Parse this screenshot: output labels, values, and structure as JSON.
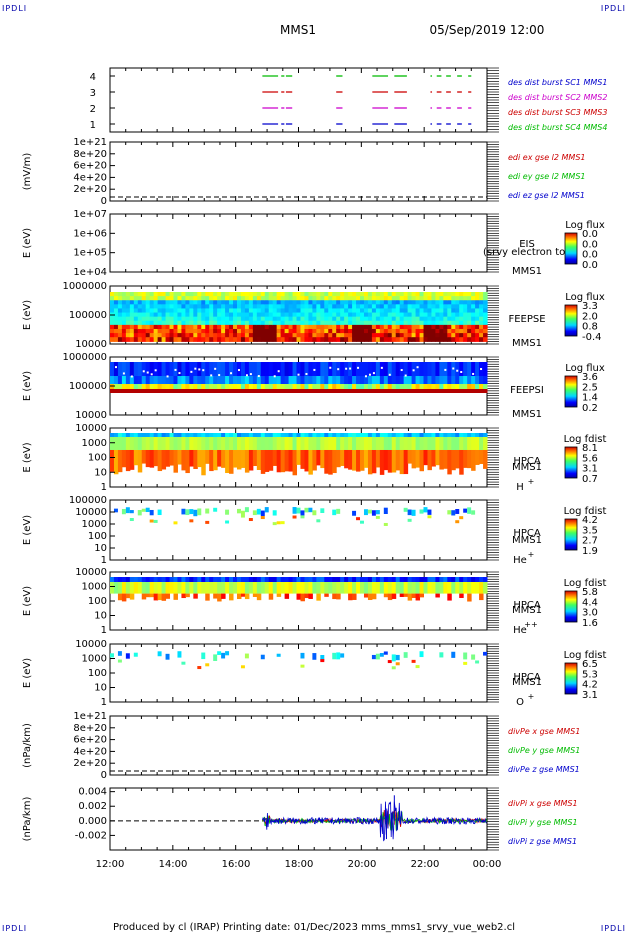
{
  "header": {
    "spacecraft": "MMS1",
    "datetime": "05/Sep/2019 12:00"
  },
  "corners": {
    "top_left": "IPDLI",
    "top_right": "IPDLI",
    "bottom_left": "IPDLI",
    "bottom_right": "IPDLI"
  },
  "footer": "Produced by cl (IRAP)    Printing date: 01/Dec/2023    mms_mms1_srvy_vue_web2.cl",
  "time_axis": {
    "ticks": [
      "12:00",
      "14:00",
      "16:00",
      "18:00",
      "20:00",
      "22:00",
      "00:00"
    ]
  },
  "colors": {
    "mms1": "#0000cc",
    "mms2": "#cc00cc",
    "mms3": "#cc0000",
    "mms4": "#00bb00",
    "text_blue": "#0000aa"
  },
  "chart_data": [
    {
      "type": "line",
      "title": "",
      "ylabel": "",
      "ylim": [
        0.5,
        4.5
      ],
      "yticks": [
        "4",
        "3",
        "2",
        "1"
      ],
      "series": [
        {
          "name": "des dist burst SC1 MMS1",
          "level": 1,
          "segments": [
            [
              16.85,
              17.35
            ],
            [
              17.45,
              17.55
            ],
            [
              17.6,
              17.8
            ],
            [
              19.2,
              19.4
            ],
            [
              20.35,
              20.85
            ],
            [
              21.05,
              21.45
            ],
            [
              22.2,
              22.25
            ],
            [
              22.4,
              22.55
            ],
            [
              22.7,
              22.85
            ],
            [
              23.05,
              23.2
            ],
            [
              23.4,
              23.5
            ]
          ]
        },
        {
          "name": "des dist burst SC2 MMS2",
          "level": 2,
          "segments": [
            [
              16.85,
              17.35
            ],
            [
              17.45,
              17.55
            ],
            [
              17.6,
              17.8
            ],
            [
              19.2,
              19.4
            ],
            [
              20.35,
              20.85
            ],
            [
              21.05,
              21.45
            ],
            [
              22.2,
              22.25
            ],
            [
              22.4,
              22.55
            ],
            [
              22.7,
              22.85
            ],
            [
              23.05,
              23.2
            ],
            [
              23.4,
              23.5
            ]
          ]
        },
        {
          "name": "des dist burst SC3 MMS3",
          "level": 3,
          "segments": [
            [
              16.85,
              17.35
            ],
            [
              17.45,
              17.55
            ],
            [
              17.6,
              17.8
            ],
            [
              19.2,
              19.4
            ],
            [
              20.35,
              20.85
            ],
            [
              21.05,
              21.45
            ],
            [
              22.2,
              22.25
            ],
            [
              22.4,
              22.55
            ],
            [
              22.7,
              22.85
            ],
            [
              23.05,
              23.2
            ],
            [
              23.4,
              23.5
            ]
          ]
        },
        {
          "name": "des dist burst SC4 MMS4",
          "level": 4,
          "segments": [
            [
              16.85,
              17.35
            ],
            [
              17.45,
              17.55
            ],
            [
              17.6,
              17.8
            ],
            [
              19.2,
              19.4
            ],
            [
              20.35,
              20.85
            ],
            [
              21.05,
              21.45
            ],
            [
              22.2,
              22.25
            ],
            [
              22.4,
              22.55
            ],
            [
              22.7,
              22.85
            ],
            [
              23.05,
              23.2
            ],
            [
              23.4,
              23.5
            ]
          ]
        }
      ]
    },
    {
      "type": "line",
      "title": "",
      "ylabel": "(mV/m)",
      "yticks": [
        "1e+21",
        "8e+20",
        "6e+20",
        "4e+20",
        "2e+20",
        "0"
      ],
      "series": [
        {
          "name": "edi ex gse l2 MMS1",
          "values": []
        },
        {
          "name": "edi ey gse l2 MMS1",
          "values": []
        },
        {
          "name": "edi ez gse l2 MMS1",
          "values": []
        }
      ]
    },
    {
      "type": "heatmap",
      "instrument": "EIS",
      "spacecraft": "MMS1",
      "overlap_text": "(srvy electron to",
      "ylabel": "E (eV)",
      "yticks": [
        "1e+07",
        "1e+06",
        "1e+05",
        "1e+04"
      ],
      "colorbar": {
        "title": "Log flux",
        "ticks": [
          "0.0",
          "0.0",
          "0.0",
          "0.0"
        ]
      }
    },
    {
      "type": "heatmap",
      "instrument": "FEEPSE",
      "spacecraft": "MMS1",
      "ylabel": "E (eV)",
      "yticks": [
        "1000000",
        "100000",
        "10000"
      ],
      "colorbar": {
        "title": "Log flux",
        "ticks": [
          "3.3",
          "2.0",
          "0.8",
          "-0.4"
        ]
      }
    },
    {
      "type": "heatmap",
      "instrument": "FEEPSI",
      "spacecraft": "MMS1",
      "ylabel": "E (eV)",
      "yticks": [
        "1000000",
        "100000",
        "10000"
      ],
      "colorbar": {
        "title": "Log flux",
        "ticks": [
          "3.6",
          "2.5",
          "1.4",
          "0.2"
        ]
      }
    },
    {
      "type": "heatmap",
      "instrument": "HPCA",
      "spacecraft": "MMS1",
      "species": "H",
      "charge": "+",
      "ylabel": "E (eV)",
      "yticks": [
        "10000",
        "1000",
        "100",
        "10",
        "1"
      ],
      "colorbar": {
        "title": "Log fdist",
        "ticks": [
          "8.1",
          "5.6",
          "3.1",
          "0.7"
        ]
      }
    },
    {
      "type": "heatmap",
      "instrument": "HPCA",
      "spacecraft": "MMS1",
      "species": "He",
      "charge": "+",
      "ylabel": "E (eV)",
      "yticks": [
        "100000",
        "10000",
        "1000",
        "100",
        "10",
        "1"
      ],
      "colorbar": {
        "title": "Log fdist",
        "ticks": [
          "4.2",
          "3.5",
          "2.7",
          "1.9"
        ]
      }
    },
    {
      "type": "heatmap",
      "instrument": "HPCA",
      "spacecraft": "MMS1",
      "species": "He",
      "charge": "++",
      "ylabel": "E (eV)",
      "yticks": [
        "10000",
        "1000",
        "100",
        "10",
        "1"
      ],
      "colorbar": {
        "title": "Log fdist",
        "ticks": [
          "5.8",
          "4.4",
          "3.0",
          "1.6"
        ]
      }
    },
    {
      "type": "heatmap",
      "instrument": "HPCA",
      "spacecraft": "MMS1",
      "species": "O",
      "charge": "+",
      "ylabel": "E (eV)",
      "yticks": [
        "10000",
        "1000",
        "100",
        "10",
        "1"
      ],
      "colorbar": {
        "title": "Log fdist",
        "ticks": [
          "6.5",
          "5.3",
          "4.2",
          "3.1"
        ]
      }
    },
    {
      "type": "line",
      "ylabel": "(nPa/km)",
      "yticks": [
        "1e+21",
        "8e+20",
        "6e+20",
        "4e+20",
        "2e+20",
        "0"
      ],
      "series": [
        {
          "name": "divPe x gse MMS1",
          "values": []
        },
        {
          "name": "divPe y gse MMS1",
          "values": []
        },
        {
          "name": "divPe z gse MMS1",
          "values": []
        }
      ]
    },
    {
      "type": "line",
      "ylabel": "(nPa/km)",
      "ylim": [
        -0.004,
        0.0045
      ],
      "yticks": [
        "0.004",
        "0.002",
        "0.000",
        "-0.002"
      ],
      "x_start_hours": 16.85,
      "series": [
        {
          "name": "divPi x gse MMS1"
        },
        {
          "name": "divPi y gse MMS1"
        },
        {
          "name": "divPi z gse MMS1"
        }
      ]
    }
  ]
}
